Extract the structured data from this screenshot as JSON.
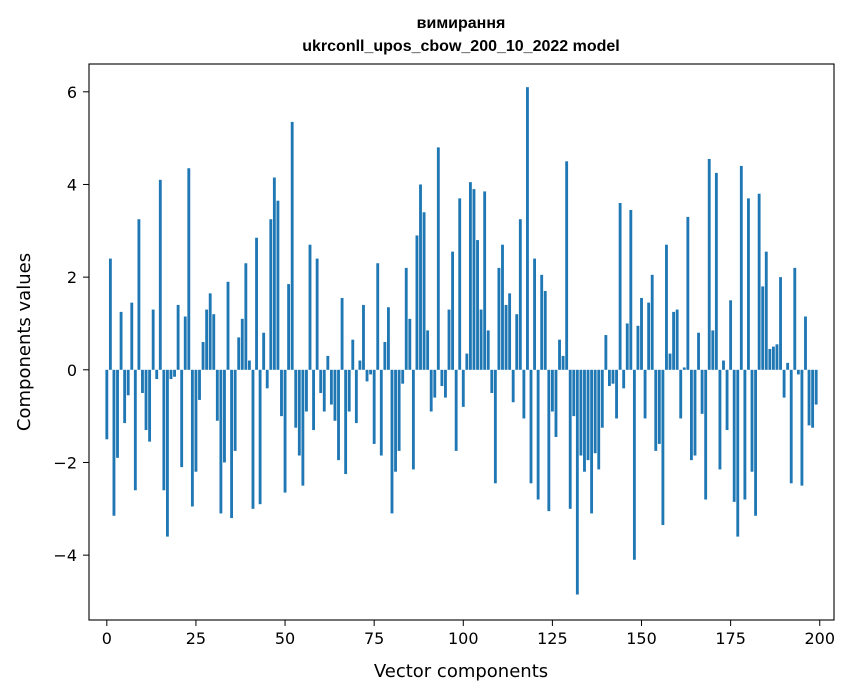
{
  "chart_data": {
    "type": "bar",
    "title": "вимирання",
    "subtitle": "ukrconll_upos_cbow_200_10_2022 model",
    "xlabel": "Vector components",
    "ylabel": "Components values",
    "xlim": [
      -5,
      204
    ],
    "ylim": [
      -5.4,
      6.6
    ],
    "x_ticks": [
      0,
      25,
      50,
      75,
      100,
      125,
      150,
      175,
      200
    ],
    "x_tick_labels": [
      "0",
      "25",
      "50",
      "75",
      "100",
      "125",
      "150",
      "175",
      "200"
    ],
    "y_ticks": [
      -4,
      -2,
      0,
      2,
      4,
      6
    ],
    "y_tick_labels": [
      "−4",
      "−2",
      "0",
      "2",
      "4",
      "6"
    ],
    "grid": false,
    "bar_color": "#1f77b4",
    "x": [
      0,
      1,
      2,
      3,
      4,
      5,
      6,
      7,
      8,
      9,
      10,
      11,
      12,
      13,
      14,
      15,
      16,
      17,
      18,
      19,
      20,
      21,
      22,
      23,
      24,
      25,
      26,
      27,
      28,
      29,
      30,
      31,
      32,
      33,
      34,
      35,
      36,
      37,
      38,
      39,
      40,
      41,
      42,
      43,
      44,
      45,
      46,
      47,
      48,
      49,
      50,
      51,
      52,
      53,
      54,
      55,
      56,
      57,
      58,
      59,
      60,
      61,
      62,
      63,
      64,
      65,
      66,
      67,
      68,
      69,
      70,
      71,
      72,
      73,
      74,
      75,
      76,
      77,
      78,
      79,
      80,
      81,
      82,
      83,
      84,
      85,
      86,
      87,
      88,
      89,
      90,
      91,
      92,
      93,
      94,
      95,
      96,
      97,
      98,
      99,
      100,
      101,
      102,
      103,
      104,
      105,
      106,
      107,
      108,
      109,
      110,
      111,
      112,
      113,
      114,
      115,
      116,
      117,
      118,
      119,
      120,
      121,
      122,
      123,
      124,
      125,
      126,
      127,
      128,
      129,
      130,
      131,
      132,
      133,
      134,
      135,
      136,
      137,
      138,
      139,
      140,
      141,
      142,
      143,
      144,
      145,
      146,
      147,
      148,
      149,
      150,
      151,
      152,
      153,
      154,
      155,
      156,
      157,
      158,
      159,
      160,
      161,
      162,
      163,
      164,
      165,
      166,
      167,
      168,
      169,
      170,
      171,
      172,
      173,
      174,
      175,
      176,
      177,
      178,
      179,
      180,
      181,
      182,
      183,
      184,
      185,
      186,
      187,
      188,
      189,
      190,
      191,
      192,
      193,
      194,
      195,
      196,
      197,
      198,
      199
    ],
    "values": [
      -1.5,
      2.4,
      -3.15,
      -1.9,
      1.25,
      -1.15,
      -0.55,
      1.45,
      -2.6,
      3.25,
      -0.5,
      -1.3,
      -1.55,
      1.3,
      -0.2,
      4.1,
      -2.6,
      -3.6,
      -0.2,
      -0.15,
      1.4,
      -2.1,
      1.15,
      4.35,
      -2.95,
      -2.2,
      -0.65,
      0.6,
      1.3,
      1.65,
      1.2,
      -1.1,
      -3.1,
      -2.0,
      1.9,
      -3.2,
      -1.75,
      0.7,
      1.1,
      2.3,
      0.2,
      -3.0,
      2.85,
      -2.9,
      0.8,
      -0.4,
      3.25,
      4.15,
      3.65,
      -1.0,
      -2.65,
      1.85,
      5.35,
      -1.25,
      -1.85,
      -2.5,
      -0.9,
      2.7,
      -1.3,
      2.4,
      -0.5,
      -0.9,
      0.3,
      -0.75,
      -1.1,
      -1.95,
      1.55,
      -2.25,
      -0.9,
      0.65,
      -1.15,
      0.2,
      1.4,
      -0.25,
      -0.1,
      -1.6,
      2.3,
      -1.85,
      0.6,
      1.35,
      -3.1,
      -2.2,
      -1.75,
      -0.3,
      2.2,
      1.1,
      -2.15,
      2.9,
      4.0,
      3.4,
      0.85,
      -0.9,
      -0.6,
      4.8,
      -0.35,
      -0.6,
      1.3,
      2.55,
      -1.75,
      3.7,
      -0.8,
      0.35,
      4.05,
      3.9,
      2.8,
      1.3,
      3.85,
      0.85,
      -0.5,
      -2.45,
      2.2,
      2.7,
      1.4,
      1.65,
      -0.7,
      1.2,
      3.25,
      -1.05,
      6.1,
      -2.45,
      2.4,
      -2.8,
      2.05,
      1.7,
      -3.05,
      -0.9,
      -1.45,
      0.65,
      0.3,
      4.5,
      -3.0,
      -1.0,
      -4.85,
      -1.85,
      -2.2,
      -1.95,
      -3.1,
      -1.8,
      -2.15,
      -1.25,
      0.75,
      -0.35,
      -0.3,
      -1.05,
      3.6,
      -0.4,
      1.0,
      3.45,
      -4.1,
      0.95,
      1.55,
      -1.05,
      1.45,
      2.05,
      -1.75,
      -1.6,
      -3.35,
      2.7,
      0.35,
      1.25,
      1.3,
      -1.05,
      0.05,
      3.3,
      -1.95,
      -1.85,
      0.8,
      -0.95,
      -2.8,
      4.55,
      0.85,
      4.25,
      -2.15,
      0.2,
      -1.3,
      1.5,
      -2.85,
      -3.6,
      4.4,
      -2.8,
      3.7,
      -2.2,
      -3.15,
      3.8,
      1.8,
      2.55,
      0.45,
      0.5,
      0.55,
      2.0,
      -0.6,
      0.15,
      -2.45,
      2.2,
      -0.1,
      -2.5,
      1.15,
      -1.2,
      -1.25,
      -0.75
    ]
  }
}
